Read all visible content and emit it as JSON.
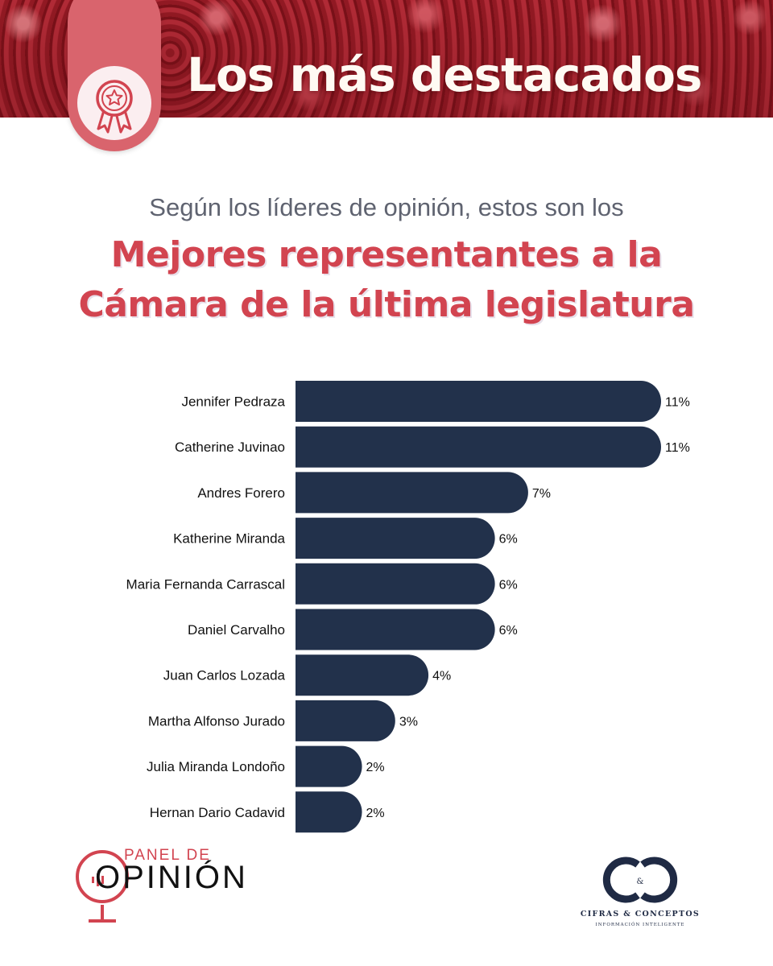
{
  "header": {
    "title": "Los más destacados",
    "badge_icon": "award-ribbon-icon"
  },
  "headline": {
    "subtitle": "Según los líderes de opinión, estos son los",
    "line1": "Mejores representantes a la",
    "line2": "Cámara de la última legislatura"
  },
  "colors": {
    "accent": "#d24450",
    "bar": "#22314b",
    "text": "#111111"
  },
  "chart_data": {
    "type": "bar",
    "orientation": "horizontal",
    "categories": [
      "Jennifer Pedraza",
      "Catherine Juvinao",
      "Andres Forero",
      "Katherine Miranda",
      "Maria Fernanda Carrascal",
      "Daniel Carvalho",
      "Juan Carlos Lozada",
      "Martha Alfonso Jurado",
      "Julia Miranda Londoño",
      "Hernan Dario Cadavid"
    ],
    "values": [
      11,
      11,
      7,
      6,
      6,
      6,
      4,
      3,
      2,
      2
    ],
    "value_suffix": "%",
    "xlim": [
      0,
      11
    ]
  },
  "footer": {
    "panel_logo": {
      "top": "PANEL DE",
      "main": "OPINIÓN",
      "icon": "microphone-icon"
    },
    "cc_logo": {
      "monogram": "C&C",
      "name": "CIFRAS & CONCEPTOS",
      "tagline": "INFORMACIÓN INTELIGENTE"
    }
  }
}
